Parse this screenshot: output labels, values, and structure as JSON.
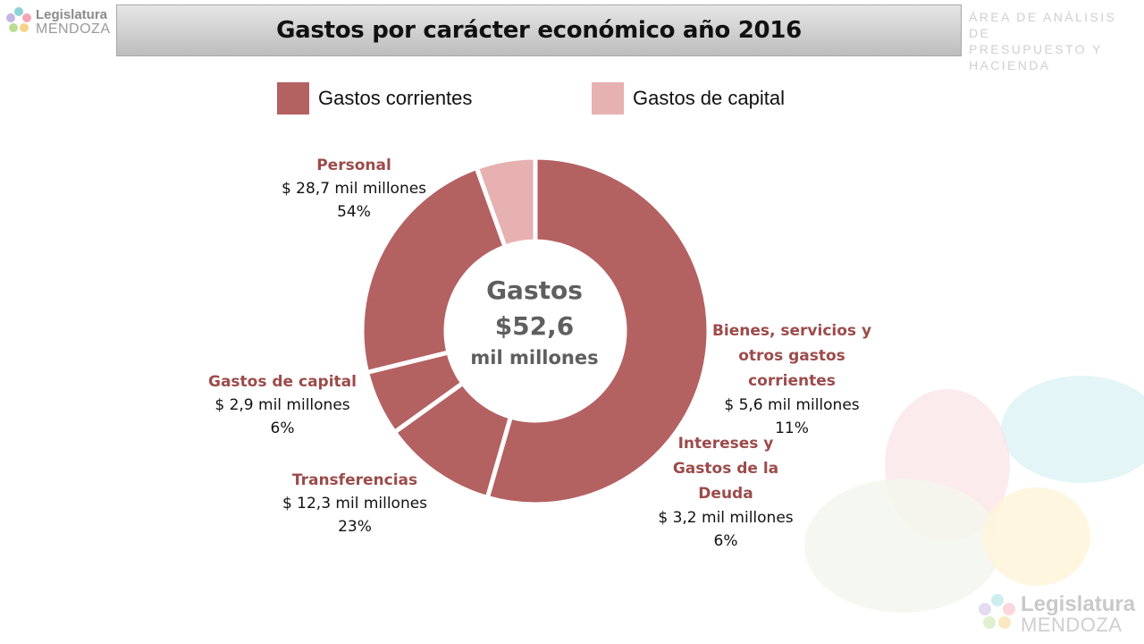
{
  "header": {
    "title": "Gastos por carácter económico año 2016",
    "area_line1": "ÁREA DE ANÁLISIS DE",
    "area_line2": "PRESUPUESTO Y HACIENDA"
  },
  "logo": {
    "word1": "Legislatura",
    "word2": "MENDOZA"
  },
  "colors": {
    "corrientes": "#b46162",
    "capital": "#e6b1b0",
    "label_name": "#9c4b4b"
  },
  "center": {
    "line1": "Gastos",
    "line2": "$52,6",
    "line3": "mil millones"
  },
  "chart_data": {
    "type": "pie",
    "title": "Gastos por carácter económico año 2016",
    "legend": [
      {
        "name": "Gastos corrientes",
        "color": "#b46162"
      },
      {
        "name": "Gastos de capital",
        "color": "#e6b1b0"
      }
    ],
    "legend_position": "top",
    "total_label": "Gastos $52,6 mil millones",
    "slices": [
      {
        "name": "Personal",
        "value": 28.7,
        "amount_label": "$ 28,7 mil millones",
        "percent_label": "54%",
        "group": "Gastos corrientes"
      },
      {
        "name": "Bienes, servicios y otros gastos corrientes",
        "value": 5.6,
        "amount_label": "$ 5,6 mil millones",
        "percent_label": "11%",
        "group": "Gastos corrientes"
      },
      {
        "name": "Intereses y Gastos de la Deuda",
        "value": 3.2,
        "amount_label": "$ 3,2 mil millones",
        "percent_label": "6%",
        "group": "Gastos corrientes"
      },
      {
        "name": "Transferencias",
        "value": 12.3,
        "amount_label": "$ 12,3 mil millones",
        "percent_label": "23%",
        "group": "Gastos corrientes"
      },
      {
        "name": "Gastos de capital",
        "value": 2.9,
        "amount_label": "$ 2,9 mil millones",
        "percent_label": "6%",
        "group": "Gastos de capital"
      }
    ]
  }
}
